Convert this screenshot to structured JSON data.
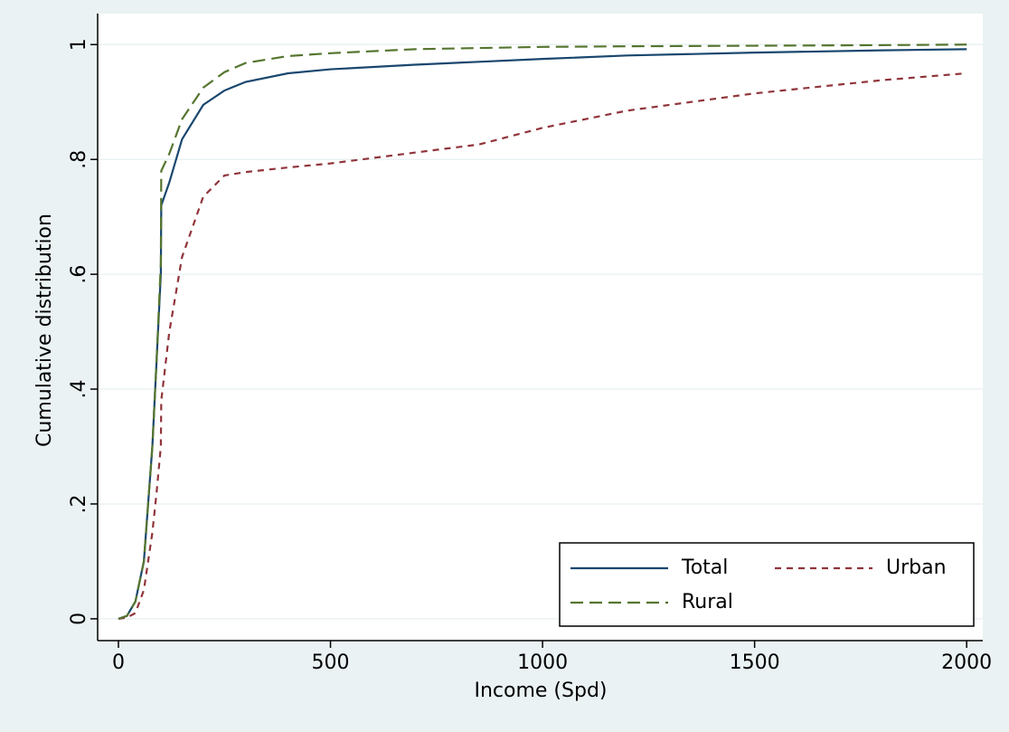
{
  "chart_data": {
    "type": "line",
    "xlabel": "Income (Spd)",
    "ylabel": "Cumulative distribution",
    "x": [
      0,
      20,
      40,
      60,
      80,
      90,
      100,
      101,
      120,
      150,
      200,
      250,
      300,
      400,
      500,
      700,
      850,
      1000,
      1200,
      1500,
      1800,
      2000
    ],
    "series": [
      {
        "name": "Total",
        "color": "#1a476f",
        "dash": "none",
        "values": [
          0,
          0.005,
          0.03,
          0.1,
          0.3,
          0.45,
          0.6,
          0.72,
          0.76,
          0.835,
          0.895,
          0.92,
          0.935,
          0.95,
          0.957,
          0.965,
          0.97,
          0.975,
          0.981,
          0.986,
          0.99,
          0.992
        ]
      },
      {
        "name": "Urban",
        "color": "#90353b",
        "dash": "short",
        "values": [
          0,
          0.002,
          0.01,
          0.05,
          0.15,
          0.22,
          0.3,
          0.38,
          0.5,
          0.63,
          0.735,
          0.772,
          0.778,
          0.786,
          0.793,
          0.812,
          0.826,
          0.855,
          0.885,
          0.915,
          0.938,
          0.95
        ]
      },
      {
        "name": "Rural",
        "color": "#55752f",
        "dash": "long",
        "values": [
          0,
          0.005,
          0.03,
          0.1,
          0.3,
          0.45,
          0.62,
          0.78,
          0.81,
          0.87,
          0.925,
          0.952,
          0.968,
          0.98,
          0.985,
          0.992,
          0.994,
          0.996,
          0.997,
          0.998,
          0.999,
          1.0
        ]
      }
    ],
    "xlim": [
      -49,
      2038
    ],
    "xticks": [
      0,
      500,
      1000,
      1500,
      2000
    ],
    "ylim": [
      -0.038,
      1.054
    ],
    "yticks": [
      0,
      {
        "value": 0.2,
        "label": ".2"
      },
      {
        "value": 0.4,
        "label": ".4"
      },
      {
        "value": 0.6,
        "label": ".6"
      },
      {
        "value": 0.8,
        "label": ".8"
      },
      1
    ],
    "grid": true,
    "legend": "bottom-right"
  }
}
